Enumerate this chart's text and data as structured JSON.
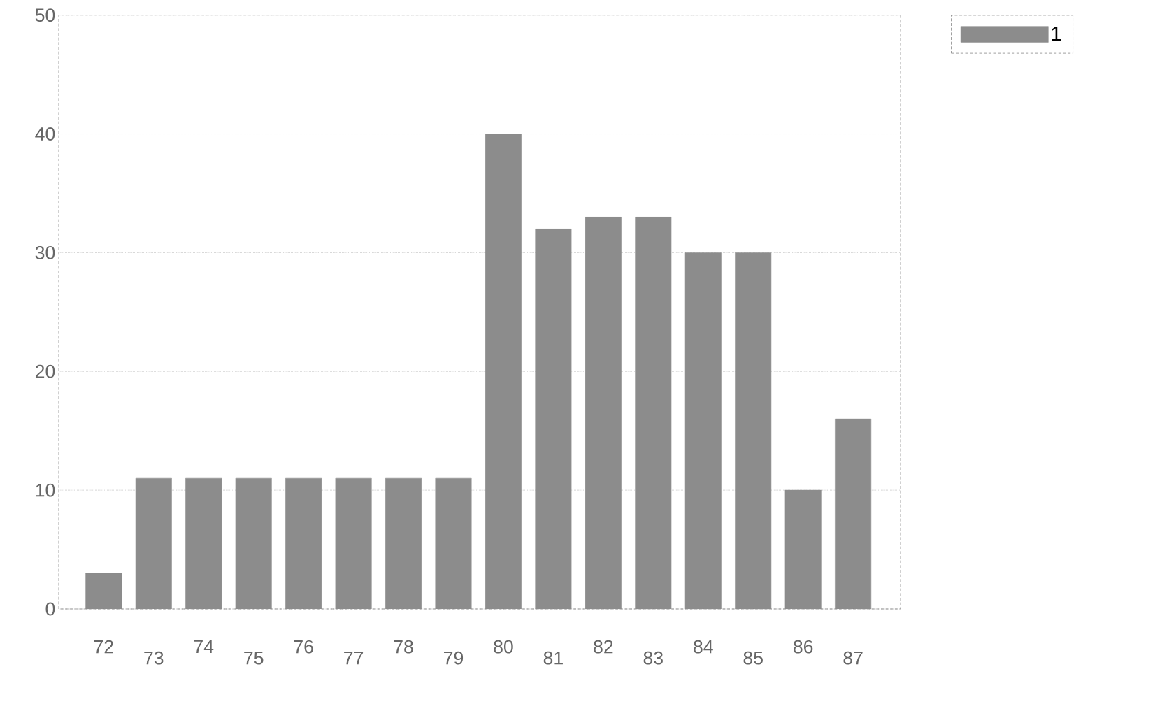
{
  "chart_data": {
    "type": "bar",
    "categories": [
      "72",
      "73",
      "74",
      "75",
      "76",
      "77",
      "78",
      "79",
      "80",
      "81",
      "82",
      "83",
      "84",
      "85",
      "86",
      "87"
    ],
    "series": [
      {
        "name": "1",
        "color": "#8c8c8c",
        "values": [
          3,
          11,
          11,
          11,
          11,
          11,
          11,
          11,
          40,
          32,
          33,
          33,
          30,
          30,
          10,
          16
        ]
      }
    ],
    "ylim": [
      0,
      50
    ],
    "yticks": [
      0,
      10,
      20,
      30,
      40,
      50
    ],
    "grid": "y",
    "legend": "top right"
  }
}
